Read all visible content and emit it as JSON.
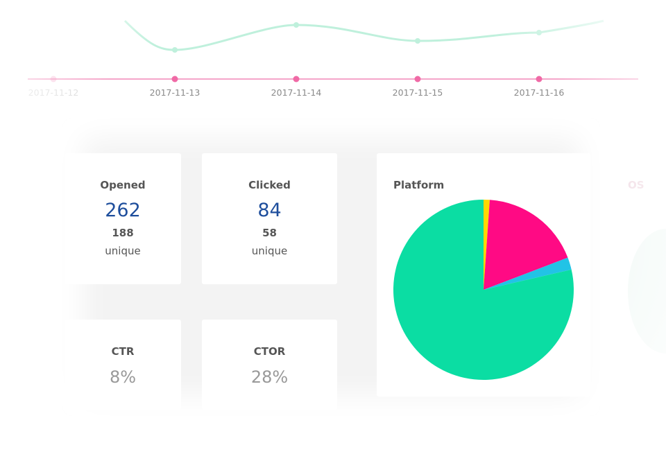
{
  "timeline": {
    "dates": [
      "2017-11-12",
      "2017-11-13",
      "2017-11-14",
      "2017-11-15",
      "2017-11-16"
    ],
    "colors": {
      "line_pink": "#f06aa6",
      "line_green": "#bff0dc"
    }
  },
  "stats": {
    "opened": {
      "label": "Opened",
      "total": "262",
      "unique_count": "188",
      "unique_label": "unique"
    },
    "clicked": {
      "label": "Clicked",
      "total": "84",
      "unique_count": "58",
      "unique_label": "unique"
    },
    "ctr": {
      "label": "CTR",
      "value": "8%"
    },
    "ctor": {
      "label": "CTOR",
      "value": "28%"
    }
  },
  "chart_data": {
    "type": "pie",
    "title": "Platform",
    "slices": [
      {
        "color": "#ffd700",
        "value": 1.1
      },
      {
        "color": "#ff0a84",
        "value": 18.1
      },
      {
        "color": "#22c3e6",
        "value": 2.2
      },
      {
        "color": "#0bdda3",
        "value": 78.6
      }
    ]
  },
  "next_card": {
    "label": "OS"
  }
}
